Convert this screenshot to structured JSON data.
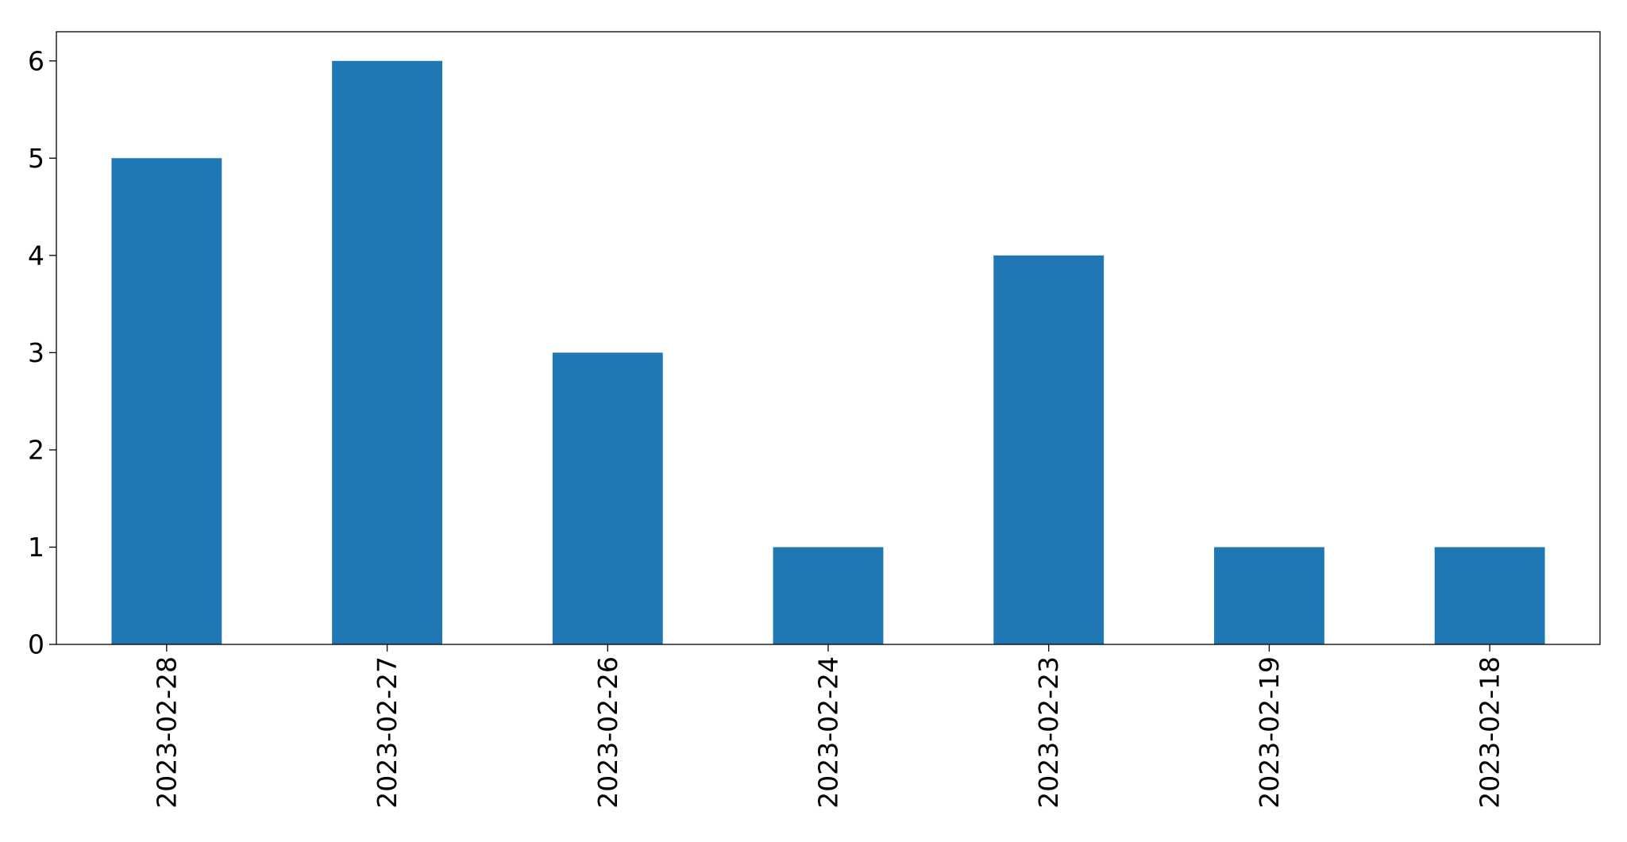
{
  "chart_data": {
    "type": "bar",
    "title": "",
    "xlabel": "",
    "ylabel": "",
    "categories": [
      "2023-02-28",
      "2023-02-27",
      "2023-02-26",
      "2023-02-24",
      "2023-02-23",
      "2023-02-19",
      "2023-02-18"
    ],
    "values": [
      5,
      6,
      3,
      1,
      4,
      1,
      1
    ],
    "ylim": [
      0,
      6.3
    ],
    "yticks": [
      0,
      1,
      2,
      3,
      4,
      5,
      6
    ],
    "ytick_labels": [
      "0",
      "1",
      "2",
      "3",
      "4",
      "5",
      "6"
    ],
    "bar_color": "#1f77b4",
    "grid": false,
    "legend": "none",
    "xtick_rotation": "vertical"
  }
}
